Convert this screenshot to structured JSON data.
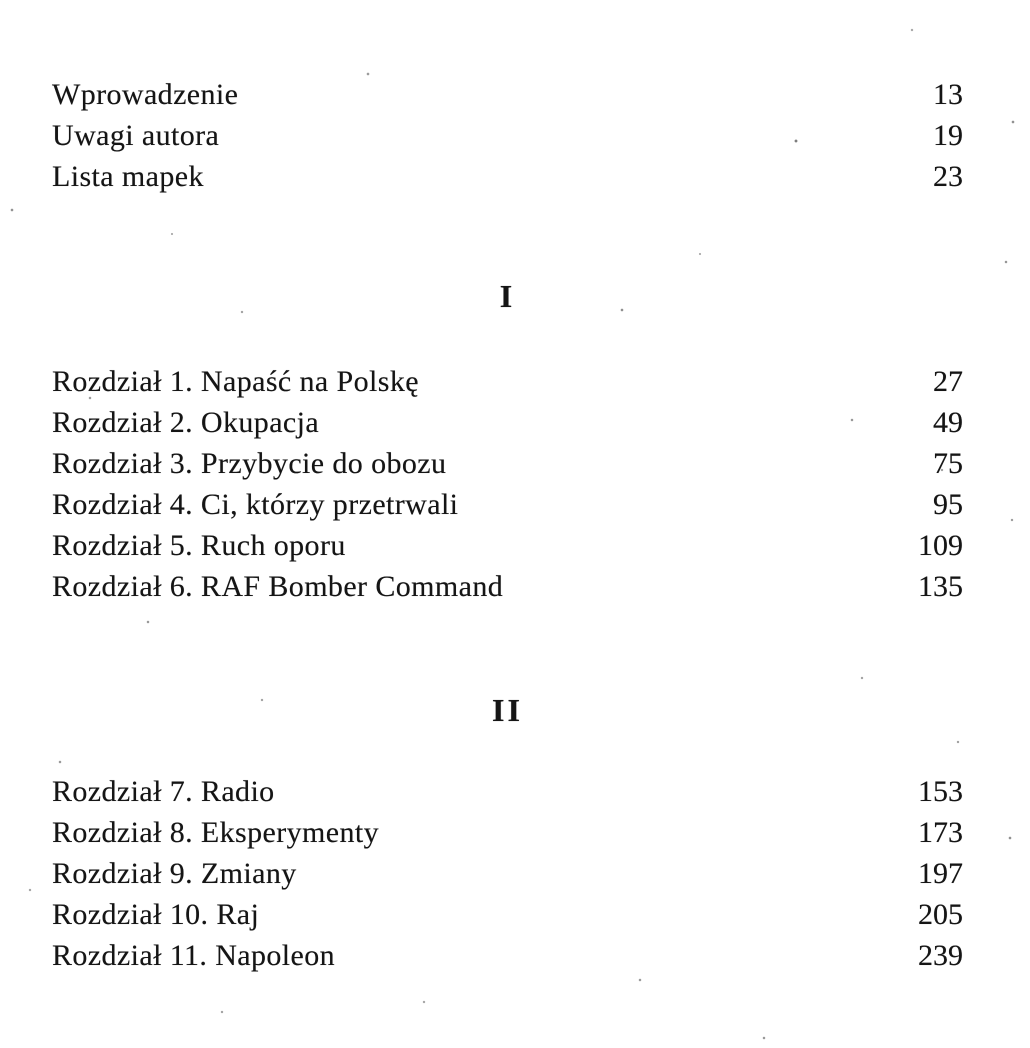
{
  "toc": {
    "front_matter": [
      {
        "label": "Wprowadzenie",
        "page": "13"
      },
      {
        "label": "Uwagi autora",
        "page": "19"
      },
      {
        "label": "Lista mapek",
        "page": "23"
      }
    ],
    "sections": [
      {
        "heading": "I",
        "chapters": [
          {
            "label": "Rozdział 1. Napaść na Polskę",
            "page": "27"
          },
          {
            "label": "Rozdział 2. Okupacja",
            "page": "49"
          },
          {
            "label": "Rozdział 3. Przybycie do obozu",
            "page": "75"
          },
          {
            "label": "Rozdział 4. Ci, którzy przetrwali",
            "page": "95"
          },
          {
            "label": "Rozdział 5. Ruch oporu",
            "page": "109"
          },
          {
            "label": "Rozdział 6. RAF Bomber Command",
            "page": "135"
          }
        ]
      },
      {
        "heading": "II",
        "chapters": [
          {
            "label": "Rozdział 7. Radio",
            "page": "153"
          },
          {
            "label": "Rozdział 8. Eksperymenty",
            "page": "173"
          },
          {
            "label": "Rozdział 9. Zmiany",
            "page": "197"
          },
          {
            "label": "Rozdział 10. Raj",
            "page": "205"
          },
          {
            "label": "Rozdział 11. Napoleon",
            "page": "239"
          }
        ]
      }
    ]
  }
}
